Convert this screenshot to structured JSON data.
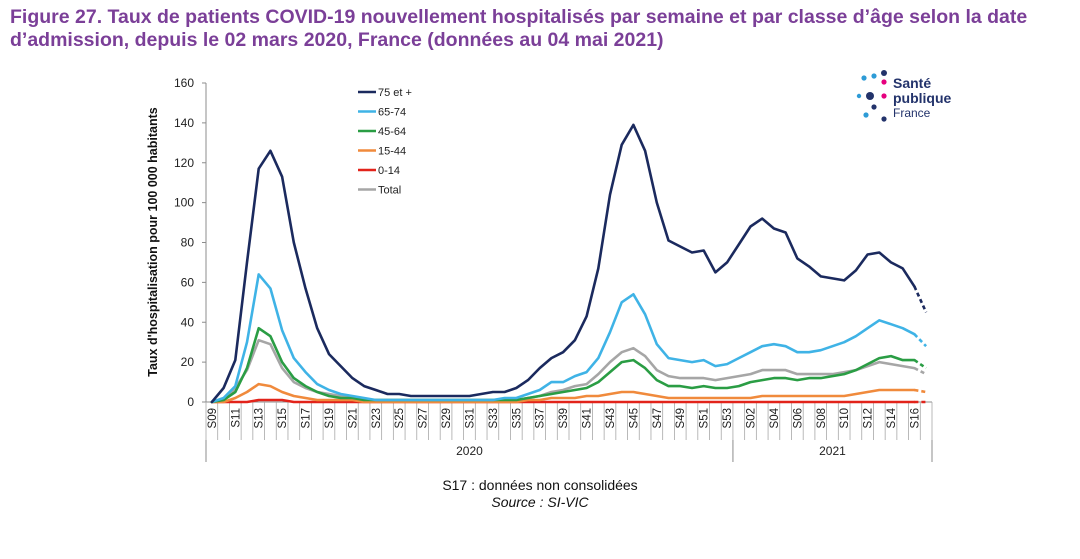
{
  "figure": {
    "title": "Figure 27. Taux de patients COVID-19 nouvellement hospitalisés par semaine et par classe d’âge selon la date d’admission, depuis le 02 mars 2020, France (données au 04 mai 2021)",
    "footnote": "S17 : données non consolidées",
    "source": "Source : SI-VIC"
  },
  "logo": {
    "line1": "Santé",
    "line2": "publique",
    "line3": "France",
    "dot_colors": [
      "#2e9bd6",
      "#e6007e",
      "#23336b"
    ]
  },
  "chart_data": {
    "type": "line",
    "ylabel": "Taux d'hospitalisation pour 100 000 habitants",
    "xlabel": "",
    "ylim": [
      0,
      160
    ],
    "yticks": [
      0,
      20,
      40,
      60,
      80,
      100,
      120,
      140,
      160
    ],
    "grid": false,
    "legend": "top-left",
    "categories": [
      "S09",
      "S10",
      "S11",
      "S12",
      "S13",
      "S14",
      "S15",
      "S16",
      "S17",
      "S18",
      "S19",
      "S20",
      "S21",
      "S22",
      "S23",
      "S24",
      "S25",
      "S26",
      "S27",
      "S28",
      "S29",
      "S30",
      "S31",
      "S32",
      "S33",
      "S34",
      "S35",
      "S36",
      "S37",
      "S38",
      "S39",
      "S40",
      "S41",
      "S42",
      "S43",
      "S44",
      "S45",
      "S46",
      "S47",
      "S48",
      "S49",
      "S50",
      "S51",
      "S52",
      "S53",
      "S01",
      "S02",
      "S03",
      "S04",
      "S05",
      "S06",
      "S07",
      "S08",
      "S09",
      "S10",
      "S11",
      "S12",
      "S13",
      "S14",
      "S15",
      "S16",
      "S17"
    ],
    "tick_labels": [
      "S09",
      "S11",
      "S13",
      "S15",
      "S17",
      "S19",
      "S21",
      "S23",
      "S25",
      "S27",
      "S29",
      "S31",
      "S33",
      "S35",
      "S37",
      "S39",
      "S41",
      "S43",
      "S45",
      "S47",
      "S49",
      "S51",
      "S53",
      "S02",
      "S04",
      "S06",
      "S08",
      "S10",
      "S12",
      "S14",
      "S16"
    ],
    "year_groups": [
      {
        "label": "2020",
        "from": 0,
        "to": 44
      },
      {
        "label": "2021",
        "from": 45,
        "to": 61
      }
    ],
    "dashed_from_index": 60,
    "series": [
      {
        "name": "75 et +",
        "color": "#1b2a5e",
        "values": [
          0,
          7,
          21,
          70,
          117,
          126,
          113,
          80,
          57,
          37,
          24,
          18,
          12,
          8,
          6,
          4,
          4,
          3,
          3,
          3,
          3,
          3,
          3,
          4,
          5,
          5,
          7,
          11,
          17,
          22,
          25,
          31,
          43,
          67,
          104,
          129,
          139,
          126,
          100,
          81,
          78,
          75,
          76,
          65,
          70,
          79,
          88,
          92,
          87,
          85,
          72,
          68,
          63,
          62,
          61,
          66,
          74,
          75,
          70,
          67,
          58,
          45
        ]
      },
      {
        "name": "65-74",
        "color": "#3fb3e6",
        "values": [
          0,
          2,
          8,
          30,
          64,
          57,
          36,
          22,
          15,
          9,
          6,
          4,
          3,
          2,
          1,
          1,
          1,
          1,
          1,
          1,
          1,
          1,
          1,
          1,
          1,
          2,
          2,
          4,
          6,
          10,
          10,
          13,
          15,
          22,
          35,
          50,
          54,
          44,
          29,
          22,
          21,
          20,
          21,
          18,
          19,
          22,
          25,
          28,
          29,
          28,
          25,
          25,
          26,
          28,
          30,
          33,
          37,
          41,
          39,
          37,
          34,
          28
        ]
      },
      {
        "name": "45-64",
        "color": "#2a9d44",
        "values": [
          0,
          1,
          5,
          17,
          37,
          33,
          20,
          12,
          8,
          5,
          3,
          2,
          2,
          1,
          1,
          1,
          1,
          1,
          1,
          1,
          1,
          1,
          1,
          1,
          1,
          1,
          1,
          2,
          3,
          4,
          5,
          6,
          7,
          10,
          15,
          20,
          21,
          17,
          11,
          8,
          8,
          7,
          8,
          7,
          7,
          8,
          10,
          11,
          12,
          12,
          11,
          12,
          12,
          13,
          14,
          16,
          19,
          22,
          23,
          21,
          21,
          17
        ]
      },
      {
        "name": "15-44",
        "color": "#f08a3c",
        "values": [
          0,
          0,
          2,
          5,
          9,
          8,
          5,
          3,
          2,
          1,
          1,
          1,
          1,
          0,
          0,
          0,
          0,
          0,
          0,
          0,
          0,
          0,
          0,
          0,
          0,
          0,
          0,
          1,
          1,
          2,
          2,
          2,
          3,
          3,
          4,
          5,
          5,
          4,
          3,
          2,
          2,
          2,
          2,
          2,
          2,
          2,
          2,
          3,
          3,
          3,
          3,
          3,
          3,
          3,
          3,
          4,
          5,
          6,
          6,
          6,
          6,
          5
        ]
      },
      {
        "name": "0-14",
        "color": "#e2231a",
        "values": [
          0,
          0,
          0,
          0,
          1,
          1,
          1,
          0,
          0,
          0,
          0,
          0,
          0,
          0,
          0,
          0,
          0,
          0,
          0,
          0,
          0,
          0,
          0,
          0,
          0,
          0,
          0,
          0,
          0,
          0,
          0,
          0,
          0,
          0,
          0,
          0,
          0,
          0,
          0,
          0,
          0,
          0,
          0,
          0,
          0,
          0,
          0,
          0,
          0,
          0,
          0,
          0,
          0,
          0,
          0,
          0,
          0,
          0,
          0,
          0,
          0,
          0
        ]
      },
      {
        "name": "Total",
        "color": "#a6a6a6",
        "values": [
          0,
          1,
          7,
          16,
          31,
          29,
          17,
          10,
          7,
          5,
          4,
          3,
          2,
          1,
          1,
          1,
          1,
          1,
          1,
          1,
          1,
          1,
          1,
          1,
          1,
          1,
          1,
          2,
          3,
          5,
          6,
          8,
          9,
          14,
          20,
          25,
          27,
          23,
          16,
          13,
          12,
          12,
          12,
          11,
          12,
          13,
          14,
          16,
          16,
          16,
          14,
          14,
          14,
          14,
          15,
          16,
          18,
          20,
          19,
          18,
          17,
          14
        ]
      }
    ]
  }
}
